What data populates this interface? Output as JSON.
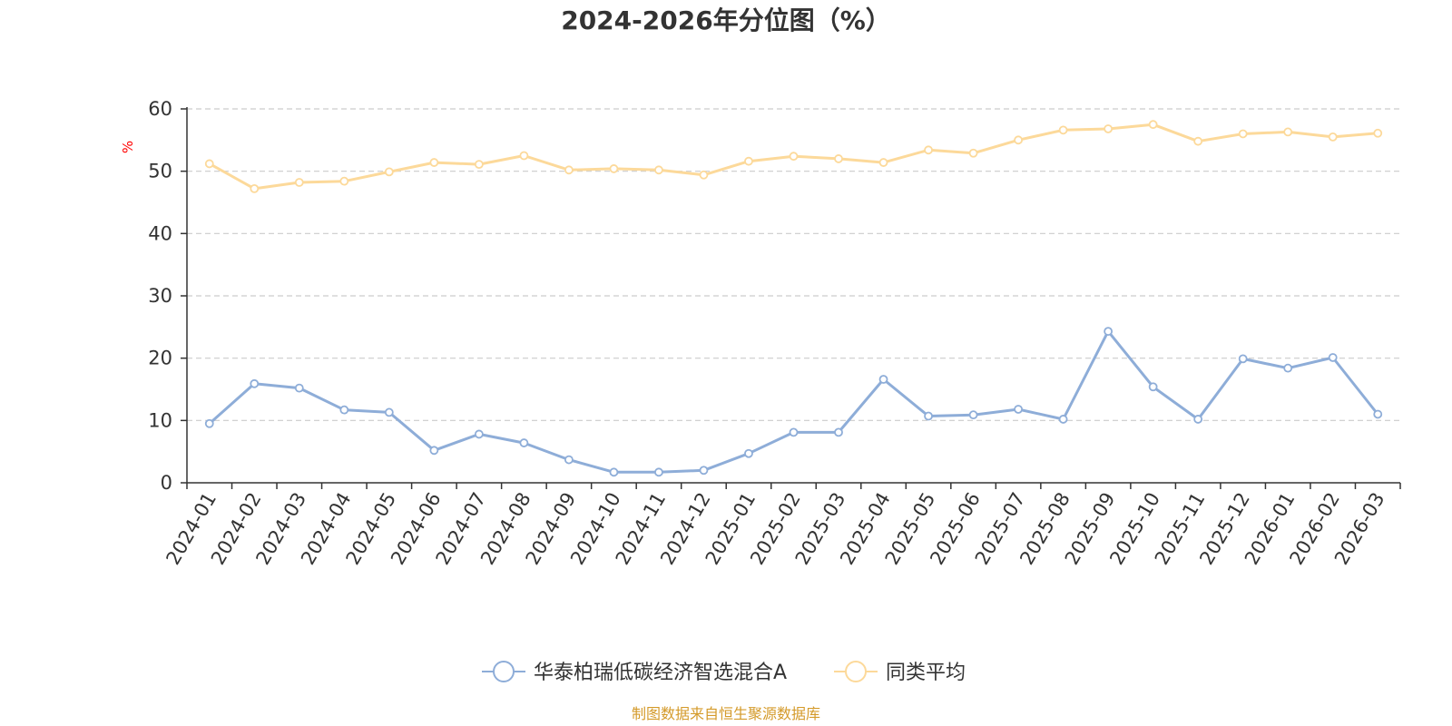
{
  "chart_data": {
    "type": "line",
    "title": "2024-2026年分位图（%）",
    "ylabel": "%",
    "xlabel": "",
    "ylim": [
      0,
      60
    ],
    "yticks": [
      "0",
      "10",
      "20",
      "30",
      "40",
      "50",
      "60"
    ],
    "grid": true,
    "legend_position": "bottom-center",
    "categories": [
      "2024-01",
      "2024-02",
      "2024-03",
      "2024-04",
      "2024-05",
      "2024-06",
      "2024-07",
      "2024-08",
      "2024-09",
      "2024-10",
      "2024-11",
      "2024-12",
      "2025-01",
      "2025-02",
      "2025-03",
      "2025-04",
      "2025-05",
      "2025-06",
      "2025-07",
      "2025-08",
      "2025-09",
      "2025-10",
      "2025-11",
      "2025-12",
      "2026-01",
      "2026-02",
      "2026-03"
    ],
    "series": [
      {
        "name": "华泰柏瑞低碳经济智选混合A",
        "color": "#8eadd8",
        "values": [
          9.5,
          15.9,
          15.2,
          11.7,
          11.3,
          5.2,
          7.8,
          6.4,
          3.7,
          1.7,
          1.7,
          2.0,
          4.7,
          8.1,
          8.1,
          16.6,
          10.7,
          10.9,
          11.8,
          10.2,
          24.3,
          15.4,
          10.2,
          19.9,
          18.4,
          20.1,
          11.0
        ]
      },
      {
        "name": "同类平均",
        "color": "#fcd99a",
        "values": [
          51.2,
          47.2,
          48.2,
          48.4,
          49.9,
          51.4,
          51.1,
          52.5,
          50.2,
          50.4,
          50.2,
          49.4,
          51.6,
          52.4,
          52.0,
          51.4,
          53.4,
          52.9,
          55.0,
          56.6,
          56.8,
          57.5,
          54.8,
          56.0,
          56.3,
          55.5,
          56.1
        ]
      }
    ]
  },
  "footer": {
    "source": "制图数据来自恒生聚源数据库",
    "source_color": "#d49a2a"
  }
}
